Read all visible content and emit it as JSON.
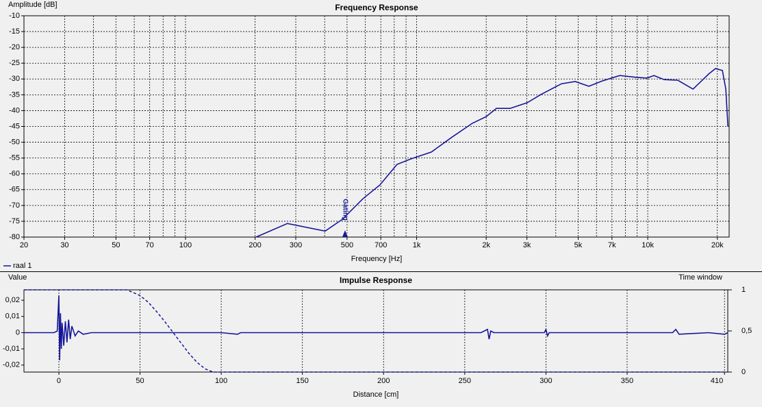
{
  "chart_data": [
    {
      "type": "line",
      "title": "Frequency Response",
      "xlabel": "Frequency [Hz]",
      "ylabel": "Amplitude [dB]",
      "xscale": "log",
      "xlim": [
        20,
        22500
      ],
      "xticks": [
        20,
        30,
        50,
        70,
        100,
        200,
        300,
        500,
        700,
        {
          "value": 1000,
          "label": "1k"
        },
        {
          "value": 2000,
          "label": "2k"
        },
        {
          "value": 3000,
          "label": "3k"
        },
        {
          "value": 5000,
          "label": "5k"
        },
        {
          "value": 7000,
          "label": "7k"
        },
        {
          "value": 10000,
          "label": "10k"
        },
        {
          "value": 20000,
          "label": "20k"
        }
      ],
      "xminor": [
        40,
        60,
        80,
        90,
        400,
        600,
        800,
        900,
        4000,
        6000,
        8000,
        9000
      ],
      "ylim": [
        -80,
        -10
      ],
      "yticks": [
        -10,
        -15,
        -20,
        -25,
        -30,
        -35,
        -40,
        -45,
        -50,
        -55,
        -60,
        -65,
        -70,
        -75,
        -80
      ],
      "grid": true,
      "legend": "bottom-left",
      "x": [
        202,
        276,
        402,
        477,
        585,
        694,
        823,
        943,
        1158,
        1422,
        1743,
        2000,
        2214,
        2537,
        3010,
        3449,
        4236,
        4857,
        5563,
        6372,
        7565,
        8974,
        9933,
        10640,
        11780,
        13500,
        15700,
        18370,
        19650,
        21040,
        21770,
        22230
      ],
      "series": [
        {
          "name": "raal 1",
          "color": "#16169a",
          "line_style": "solid",
          "values": [
            -80,
            -75.7,
            -78.1,
            -74.4,
            -67.9,
            -63.5,
            -57,
            -55.3,
            -53.1,
            -48.4,
            -44,
            -41.9,
            -39.3,
            -39.3,
            -37.5,
            -34.9,
            -31.5,
            -30.8,
            -32.3,
            -30.6,
            -28.9,
            -29.5,
            -29.7,
            -28.9,
            -30.2,
            -30.4,
            -33.2,
            -28.4,
            -26.7,
            -27.3,
            -33.2,
            -45.1
          ]
        }
      ],
      "annotations": [
        {
          "text": "Gating",
          "x": 490
        }
      ]
    },
    {
      "type": "line",
      "title": "Impulse Response",
      "xlabel": "Distance [cm]",
      "ylabel": "Value",
      "y2label": "Time window",
      "xscale": "linear",
      "xlim": [
        -21.5,
        412
      ],
      "xticks": [
        0,
        50,
        100,
        150,
        200,
        250,
        300,
        350,
        410
      ],
      "ylim": [
        -0.0243,
        0.0264
      ],
      "yticks": [
        {
          "value": 0.02,
          "label": "0,02"
        },
        {
          "value": 0.01,
          "label": "0,01"
        },
        0,
        {
          "value": -0.01,
          "label": "-0,01"
        },
        {
          "value": -0.02,
          "label": "-0,02"
        }
      ],
      "y2lim": [
        0,
        1
      ],
      "y2ticks": [
        1,
        {
          "value": 0.5,
          "label": "0,5"
        },
        0
      ],
      "grid": true,
      "series": [
        {
          "color": "#16169a",
          "line_style": "solid",
          "x": [
            -21.5,
            -3,
            -1,
            0,
            0.5,
            1,
            1.5,
            2,
            3,
            4,
            5,
            6,
            7,
            8,
            10,
            12,
            15,
            20,
            60,
            100,
            110,
            112,
            260,
            264,
            265,
            266,
            268,
            299,
            300,
            301,
            302,
            378,
            380,
            382,
            400,
            410,
            412
          ],
          "values": [
            0,
            0,
            0.001,
            0.023,
            -0.017,
            0.012,
            -0.01,
            0.006,
            -0.008,
            0.007,
            -0.006,
            0.008,
            -0.004,
            0.004,
            -0.002,
            0.001,
            -0.001,
            0,
            0,
            0,
            -0.001,
            0,
            0,
            0.002,
            -0.004,
            0.001,
            0,
            0,
            0.002,
            -0.002,
            0,
            0,
            0.002,
            -0.001,
            0,
            -0.001,
            0
          ]
        },
        {
          "color": "#16169a",
          "line_style": "dashed",
          "axis": "y2",
          "x": [
            -21.5,
            42,
            50,
            55,
            60,
            65,
            70,
            75,
            80,
            85,
            90,
            95,
            412
          ],
          "values": [
            1,
            1,
            0.93,
            0.85,
            0.74,
            0.62,
            0.49,
            0.36,
            0.23,
            0.12,
            0.04,
            0,
            0
          ]
        }
      ]
    }
  ]
}
